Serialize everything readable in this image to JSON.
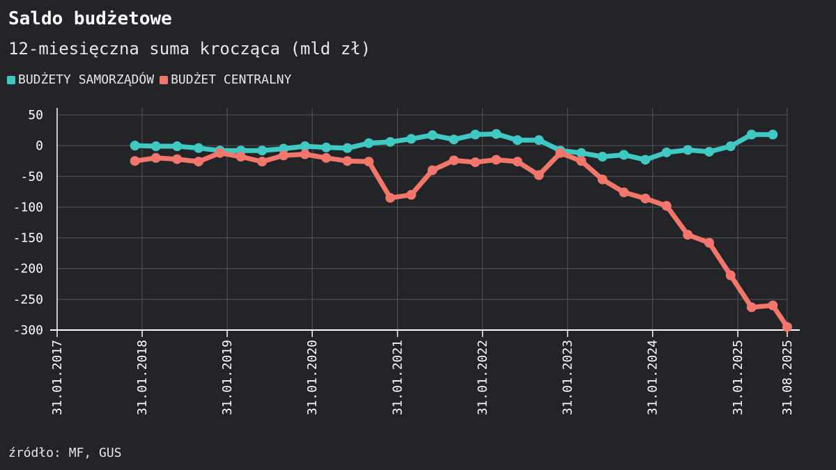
{
  "header": {
    "title": "Saldo budżetowe",
    "subtitle": "12-miesięczna suma krocząca (mld zł)"
  },
  "footer": {
    "source": "źródło: MF, GUS"
  },
  "colors": {
    "background": "#232428",
    "grid": "#55565b",
    "axis": "#ffffff",
    "samorzady": "#40c9c4",
    "centralny": "#f2766b"
  },
  "chart_data": {
    "type": "line",
    "title": "Saldo budżetowe",
    "subtitle": "12-miesięczna suma krocząca (mld zł)",
    "xlabel": "",
    "ylabel": "",
    "ylim": [
      -300,
      50
    ],
    "xlim": [
      "2017-01-31",
      "2025-08-31"
    ],
    "grid": true,
    "legend_position": "top-left",
    "y_ticks": [
      50,
      0,
      -50,
      -100,
      -150,
      -200,
      -250,
      -300
    ],
    "y_tick_labels": [
      "50",
      "0",
      "-50",
      "-100",
      "-150",
      "-200",
      "-250",
      "-300"
    ],
    "x_ticks": [
      "2017-01-31",
      "2018-01-31",
      "2019-01-31",
      "2020-01-31",
      "2021-01-31",
      "2022-01-31",
      "2023-01-31",
      "2024-01-31",
      "2025-01-31",
      "2025-08-31"
    ],
    "x_tick_labels": [
      "31.01.2017",
      "31.01.2018",
      "31.01.2019",
      "31.01.2020",
      "31.01.2021",
      "31.01.2022",
      "31.01.2023",
      "31.01.2024",
      "31.01.2025",
      "31.08.2025"
    ],
    "x": [
      "2017-12-31",
      "2018-03-31",
      "2018-06-30",
      "2018-09-30",
      "2018-12-31",
      "2019-03-31",
      "2019-06-30",
      "2019-09-30",
      "2019-12-31",
      "2020-03-31",
      "2020-06-30",
      "2020-09-30",
      "2020-12-31",
      "2021-03-31",
      "2021-06-30",
      "2021-09-30",
      "2021-12-31",
      "2022-03-31",
      "2022-06-30",
      "2022-09-30",
      "2022-12-31",
      "2023-03-31",
      "2023-06-30",
      "2023-09-30",
      "2023-12-31",
      "2024-03-31",
      "2024-06-30",
      "2024-09-30",
      "2024-12-31",
      "2025-03-31",
      "2025-06-30",
      "2025-08-31"
    ],
    "series": [
      {
        "name": "BUDŻETY SAMORZĄDÓW",
        "color": "#40c9c4",
        "values": [
          0,
          -1,
          -1,
          -4,
          -8,
          -8,
          -8,
          -5,
          -1,
          -3,
          -4,
          4,
          6,
          11,
          17,
          10,
          18,
          19,
          9,
          9,
          -8,
          -12,
          -18,
          -15,
          -23,
          -11,
          -7,
          -10,
          -1,
          18,
          18,
          null
        ]
      },
      {
        "name": "BUDŻET CENTRALNY",
        "color": "#f2766b",
        "values": [
          -25,
          -20,
          -22,
          -26,
          -12,
          -18,
          -26,
          -16,
          -14,
          -20,
          -25,
          -26,
          -85,
          -80,
          -40,
          -24,
          -27,
          -23,
          -26,
          -48,
          -12,
          -25,
          -55,
          -76,
          -86,
          -98,
          -145,
          -158,
          -211,
          -263,
          -260,
          -295
        ]
      }
    ]
  }
}
